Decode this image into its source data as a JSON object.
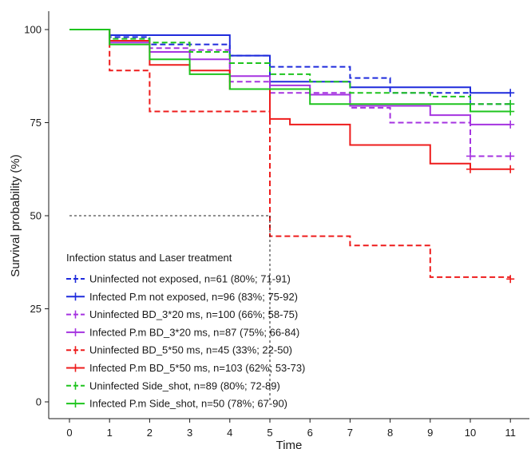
{
  "chart_data": {
    "type": "line",
    "title": "",
    "xlabel": "Time",
    "ylabel": "Survival probability (%)",
    "xlim": [
      0,
      11
    ],
    "ylim": [
      0,
      100
    ],
    "x_ticks": [
      0,
      1,
      2,
      3,
      4,
      5,
      6,
      7,
      8,
      9,
      10,
      11
    ],
    "y_ticks": [
      0,
      25,
      50,
      75,
      100
    ],
    "grid": false,
    "legend_title": "Infection status and Laser treatment",
    "legend_position": "bottom-left",
    "median_reference": {
      "y": 50,
      "x_end": 5
    },
    "series": [
      {
        "name": "Uninfected not exposed, n=61 (80%; 71-91)",
        "color": "#1f2bdc",
        "dashed": true,
        "steps": [
          [
            0,
            100
          ],
          [
            1,
            98
          ],
          [
            2,
            96
          ],
          [
            4,
            93
          ],
          [
            5,
            90
          ],
          [
            7,
            87
          ],
          [
            8,
            83
          ],
          [
            10,
            80
          ],
          [
            11,
            80
          ]
        ],
        "censor": [
          [
            10,
            80
          ],
          [
            11,
            80
          ]
        ]
      },
      {
        "name": "Infected P.m not exposed, n=96 (83%; 75-92)",
        "color": "#1f2bdc",
        "dashed": false,
        "steps": [
          [
            0,
            100
          ],
          [
            1,
            98.5
          ],
          [
            4,
            93
          ],
          [
            5,
            86
          ],
          [
            7,
            84.5
          ],
          [
            10,
            83
          ],
          [
            11,
            83
          ]
        ],
        "censor": [
          [
            11,
            83
          ]
        ]
      },
      {
        "name": "Uninfected BD_3*20 ms, n=100 (66%; 58-75)",
        "color": "#a533e0",
        "dashed": true,
        "steps": [
          [
            0,
            100
          ],
          [
            1,
            97
          ],
          [
            2,
            95
          ],
          [
            3,
            94.5
          ],
          [
            4,
            86
          ],
          [
            5,
            83
          ],
          [
            7,
            79
          ],
          [
            8,
            75
          ],
          [
            10,
            66
          ],
          [
            11,
            66
          ]
        ],
        "censor": [
          [
            10,
            66
          ],
          [
            11,
            66
          ]
        ]
      },
      {
        "name": "Infected P.m BD_3*20 ms, n=87 (75%; 66-84)",
        "color": "#a533e0",
        "dashed": false,
        "steps": [
          [
            0,
            100
          ],
          [
            1,
            96.5
          ],
          [
            2,
            94
          ],
          [
            3,
            92
          ],
          [
            4,
            87.5
          ],
          [
            5,
            85
          ],
          [
            6,
            82.5
          ],
          [
            7,
            79.5
          ],
          [
            9,
            77
          ],
          [
            10,
            74.5
          ],
          [
            11,
            74.5
          ]
        ],
        "censor": [
          [
            11,
            74.5
          ]
        ]
      },
      {
        "name": "Uninfected BD_5*50 ms, n=45 (33%; 22-50)",
        "color": "#ee1c1c",
        "dashed": true,
        "steps": [
          [
            0,
            100
          ],
          [
            1,
            89
          ],
          [
            2,
            78
          ],
          [
            5,
            44.5
          ],
          [
            7,
            42
          ],
          [
            9,
            33.5
          ],
          [
            11,
            33.5
          ]
        ],
        "censor": [
          [
            11,
            33
          ]
        ]
      },
      {
        "name": "Infected P.m BD_5*50 ms, n=103 (62%; 53-73)",
        "color": "#ee1c1c",
        "dashed": false,
        "steps": [
          [
            0,
            100
          ],
          [
            1,
            97
          ],
          [
            2,
            90.5
          ],
          [
            3,
            89
          ],
          [
            4,
            84
          ],
          [
            5,
            76
          ],
          [
            5.5,
            74.5
          ],
          [
            7,
            69
          ],
          [
            9,
            64
          ],
          [
            10,
            62.5
          ],
          [
            11,
            62.5
          ]
        ],
        "censor": [
          [
            10,
            62.5
          ],
          [
            11,
            62.5
          ]
        ]
      },
      {
        "name": "Uninfected Side_shot, n=89 (80%; 72-89)",
        "color": "#1ec41e",
        "dashed": true,
        "steps": [
          [
            0,
            100
          ],
          [
            1,
            97.5
          ],
          [
            2,
            96.5
          ],
          [
            3,
            94
          ],
          [
            4,
            91
          ],
          [
            5,
            88
          ],
          [
            6,
            86
          ],
          [
            7,
            83
          ],
          [
            9,
            82
          ],
          [
            10,
            80
          ],
          [
            11,
            80
          ]
        ],
        "censor": [
          [
            11,
            80
          ]
        ]
      },
      {
        "name": "Infected P.m Side_shot, n=50 (78%; 67-90)",
        "color": "#1ec41e",
        "dashed": false,
        "steps": [
          [
            0,
            100
          ],
          [
            1,
            96
          ],
          [
            2,
            92
          ],
          [
            3,
            88
          ],
          [
            4,
            84
          ],
          [
            6,
            80
          ],
          [
            10,
            78
          ],
          [
            11,
            78
          ]
        ],
        "censor": [
          [
            11,
            78
          ]
        ]
      }
    ]
  }
}
